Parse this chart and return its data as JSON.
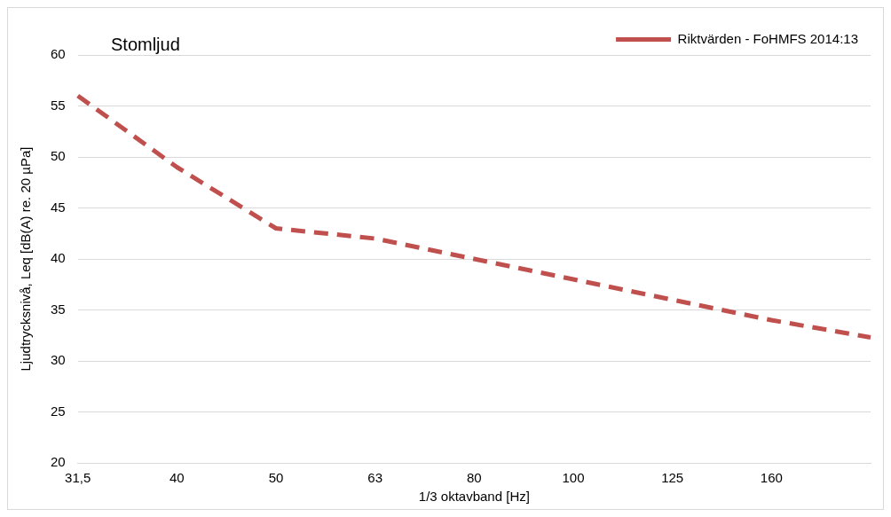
{
  "chart_data": {
    "type": "line",
    "title": "Stomljud",
    "xlabel": "1/3 oktavband [Hz]",
    "ylabel": "Ljudtrycksnivå, Leq [dB(A) re. 20 µPa]",
    "categories": [
      "31,5",
      "40",
      "50",
      "63",
      "80",
      "100",
      "125",
      "160",
      null
    ],
    "series": [
      {
        "name": "Riktvärden - FoHMFS 2014:13",
        "color": "#c0504d",
        "values": [
          56,
          49,
          43,
          42,
          40,
          38,
          36,
          34,
          32.3
        ]
      }
    ],
    "ylim": [
      20,
      60
    ],
    "yticks": [
      20,
      25,
      30,
      35,
      40,
      45,
      50,
      55,
      60
    ],
    "grid": "y",
    "legend": "top right",
    "marker": "none",
    "line_style": "dashed"
  }
}
